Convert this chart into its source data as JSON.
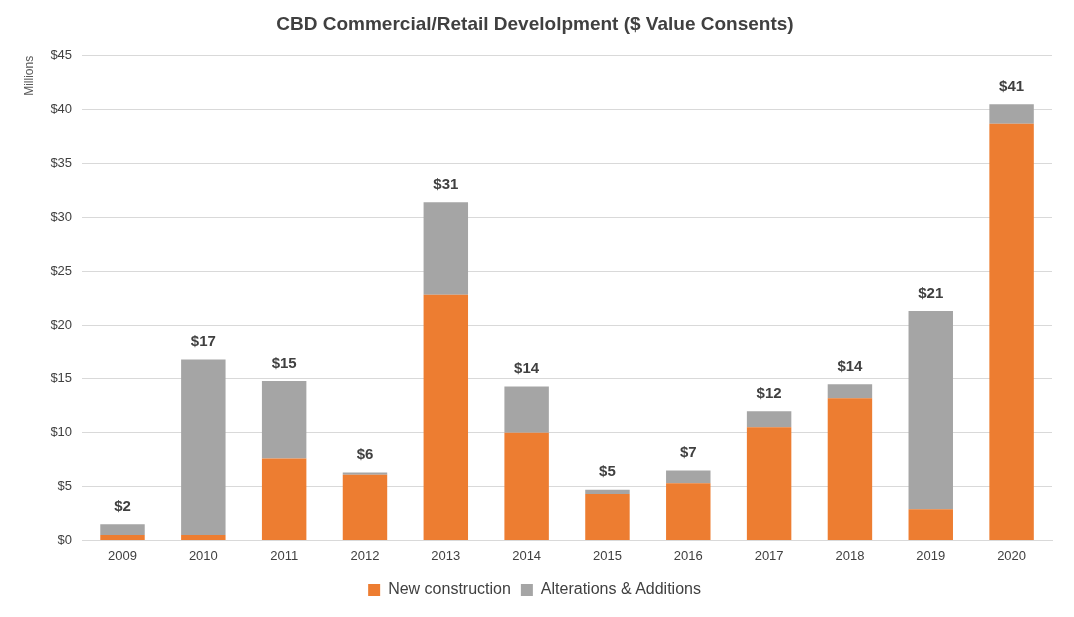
{
  "chart_data": {
    "type": "bar",
    "title": "CBD Commercial/Retail Develolpment ($ Value Consents)",
    "ylabel": "Millions",
    "categories": [
      "2009",
      "2010",
      "2011",
      "2012",
      "2013",
      "2014",
      "2015",
      "2016",
      "2017",
      "2018",
      "2019",
      "2020"
    ],
    "stacked": true,
    "series": [
      {
        "name": "New construction",
        "color": "#ed7d31",
        "values": [
          0.5,
          0.5,
          7.6,
          6.1,
          22.8,
          10.0,
          4.3,
          5.3,
          10.5,
          13.2,
          2.9,
          38.7
        ]
      },
      {
        "name": "Alterations & Additions",
        "color": "#a5a5a5",
        "values": [
          1.0,
          16.3,
          7.2,
          0.2,
          8.6,
          4.3,
          0.4,
          1.2,
          1.5,
          1.3,
          18.4,
          1.8
        ]
      }
    ],
    "totals": [
      "$2",
      "$17",
      "$15",
      "$6",
      "$31",
      "$14",
      "$5",
      "$7",
      "$12",
      "$14",
      "$21",
      "$41"
    ],
    "ylim": [
      0,
      45
    ],
    "yticks": [
      {
        "value": 0,
        "label": "$0"
      },
      {
        "value": 5,
        "label": "$5"
      },
      {
        "value": 10,
        "label": "$10"
      },
      {
        "value": 15,
        "label": "$15"
      },
      {
        "value": 20,
        "label": "$20"
      },
      {
        "value": 25,
        "label": "$25"
      },
      {
        "value": 30,
        "label": "$30"
      },
      {
        "value": 35,
        "label": "$35"
      },
      {
        "value": 40,
        "label": "$40"
      },
      {
        "value": 45,
        "label": "$45"
      }
    ],
    "grid": "y",
    "legend": "bottom"
  }
}
